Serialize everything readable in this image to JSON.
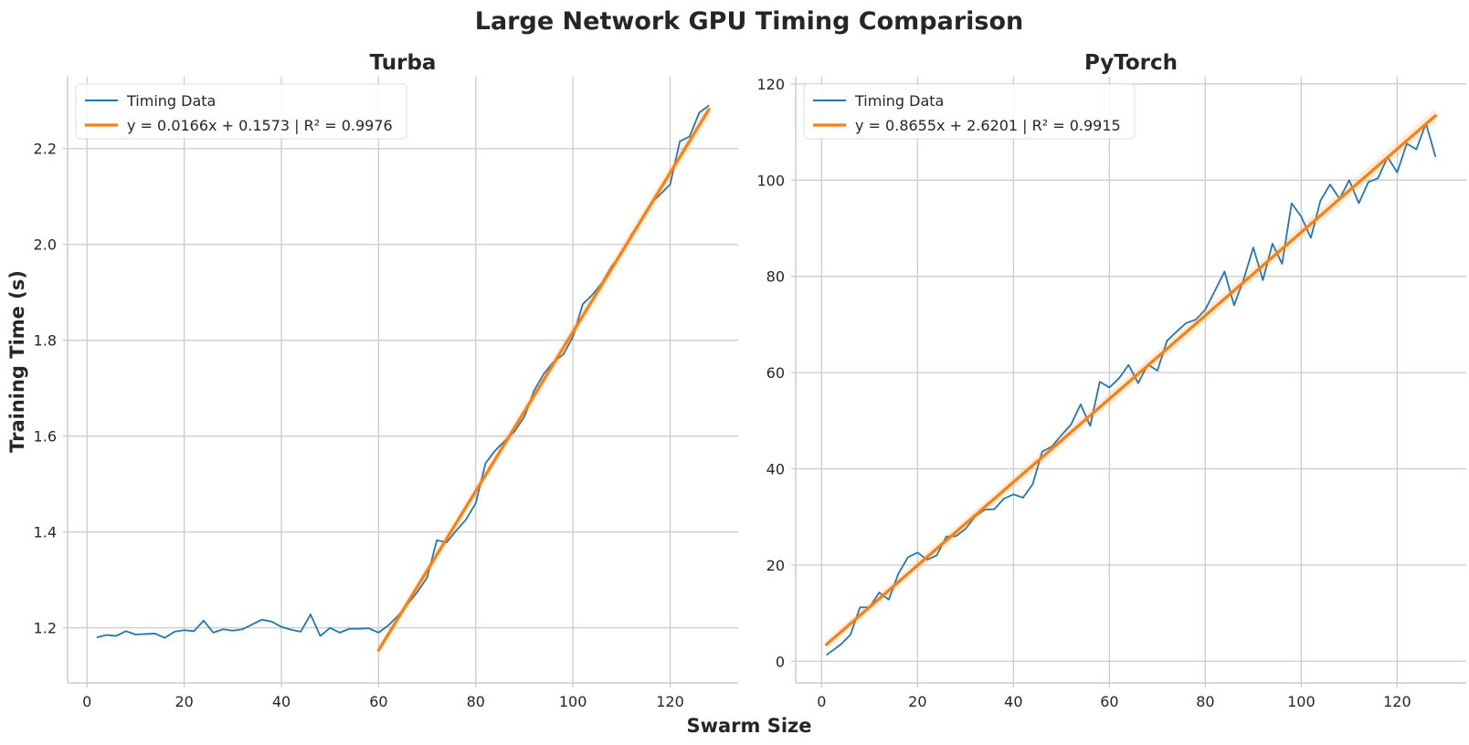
{
  "figure": {
    "title": "Large Network GPU Timing Comparison",
    "xlabel": "Swarm Size",
    "ylabel": "Training Time (s)"
  },
  "colors": {
    "data_line": "#1f77b4",
    "fit_line": "#ff7f0e",
    "grid": "#cccccc",
    "text": "#262626"
  },
  "chart_data": [
    {
      "type": "line",
      "title": "Turba",
      "xlim": [
        -4,
        134
      ],
      "ylim": [
        1.085,
        2.35
      ],
      "x_ticks": [
        0,
        20,
        40,
        60,
        80,
        100,
        120
      ],
      "x_tick_labels": [
        "0",
        "20",
        "40",
        "60",
        "80",
        "100",
        "120"
      ],
      "y_ticks": [
        1.2,
        1.4,
        1.6,
        1.8,
        2.0,
        2.2
      ],
      "y_tick_labels": [
        "1.2",
        "1.4",
        "1.6",
        "1.8",
        "2.0",
        "2.2"
      ],
      "grid": true,
      "legend_position": "upper-left",
      "series": [
        {
          "name": "Timing Data",
          "color": "#1f77b4",
          "x": [
            2,
            4,
            6,
            8,
            10,
            12,
            14,
            16,
            18,
            20,
            22,
            24,
            26,
            28,
            30,
            32,
            34,
            36,
            38,
            40,
            42,
            44,
            46,
            48,
            50,
            52,
            54,
            56,
            58,
            60,
            62,
            64,
            66,
            68,
            70,
            72,
            74,
            76,
            78,
            80,
            82,
            84,
            86,
            88,
            90,
            92,
            94,
            96,
            98,
            100,
            102,
            104,
            106,
            108,
            110,
            112,
            114,
            116,
            118,
            120,
            122,
            124,
            126,
            128
          ],
          "y": [
            1.18,
            1.185,
            1.183,
            1.193,
            1.186,
            1.187,
            1.188,
            1.179,
            1.192,
            1.195,
            1.193,
            1.215,
            1.19,
            1.197,
            1.194,
            1.197,
            1.207,
            1.217,
            1.213,
            1.202,
            1.196,
            1.192,
            1.228,
            1.183,
            1.2,
            1.19,
            1.198,
            1.198,
            1.199,
            1.19,
            1.205,
            1.225,
            1.25,
            1.275,
            1.305,
            1.383,
            1.378,
            1.403,
            1.426,
            1.46,
            1.543,
            1.57,
            1.59,
            1.61,
            1.64,
            1.695,
            1.73,
            1.755,
            1.77,
            1.807,
            1.875,
            1.895,
            1.92,
            1.955,
            1.98,
            2.02,
            2.05,
            2.085,
            2.105,
            2.125,
            2.215,
            2.225,
            2.275,
            2.29
          ]
        },
        {
          "name": "y = 0.0166x + 0.1573 | R² = 0.9976",
          "color": "#ff7f0e",
          "type": "linear_fit",
          "slope": 0.0166,
          "intercept": 0.1573,
          "r2": 0.9976,
          "x_range": [
            60,
            128
          ]
        }
      ]
    },
    {
      "type": "line",
      "title": "PyTorch",
      "xlim": [
        -5.4,
        134.4
      ],
      "ylim": [
        -4.5,
        121.5
      ],
      "x_ticks": [
        0,
        20,
        40,
        60,
        80,
        100,
        120
      ],
      "x_tick_labels": [
        "0",
        "20",
        "40",
        "60",
        "80",
        "100",
        "120"
      ],
      "y_ticks": [
        0,
        20,
        40,
        60,
        80,
        100,
        120
      ],
      "y_tick_labels": [
        "0",
        "20",
        "40",
        "60",
        "80",
        "100",
        "120"
      ],
      "grid": true,
      "legend_position": "upper-left",
      "series": [
        {
          "name": "Timing Data",
          "color": "#1f77b4",
          "x": [
            1,
            4,
            6,
            8,
            10,
            12,
            14,
            16,
            18,
            20,
            22,
            24,
            26,
            28,
            30,
            32,
            34,
            36,
            38,
            40,
            42,
            44,
            46,
            48,
            50,
            52,
            54,
            56,
            58,
            60,
            62,
            64,
            66,
            68,
            70,
            72,
            74,
            76,
            78,
            80,
            82,
            84,
            86,
            88,
            90,
            92,
            94,
            96,
            98,
            100,
            102,
            104,
            106,
            108,
            110,
            112,
            114,
            116,
            118,
            120,
            122,
            124,
            126,
            128
          ],
          "y": [
            1.3,
            3.5,
            5.5,
            11.2,
            11.2,
            14.3,
            12.8,
            18.2,
            21.6,
            22.6,
            21.1,
            22.0,
            25.9,
            26.0,
            27.5,
            30.1,
            31.5,
            31.6,
            33.8,
            34.7,
            34.0,
            36.8,
            43.6,
            44.6,
            47.0,
            49.2,
            53.4,
            48.9,
            58.1,
            56.9,
            58.8,
            61.6,
            57.8,
            61.7,
            60.4,
            66.6,
            68.5,
            70.3,
            71.0,
            73.1,
            77.0,
            81.0,
            74.0,
            79.4,
            86.0,
            79.2,
            86.8,
            82.6,
            95.2,
            92.4,
            88.0,
            95.7,
            99.1,
            96.1,
            100.0,
            95.2,
            99.6,
            100.4,
            104.8,
            101.6,
            107.6,
            106.4,
            111.8,
            104.8
          ]
        },
        {
          "name": "y = 0.8655x + 2.6201 | R² = 0.9915",
          "color": "#ff7f0e",
          "type": "linear_fit",
          "slope": 0.8655,
          "intercept": 2.6201,
          "r2": 0.9915,
          "x_range": [
            1,
            128
          ]
        }
      ]
    }
  ]
}
